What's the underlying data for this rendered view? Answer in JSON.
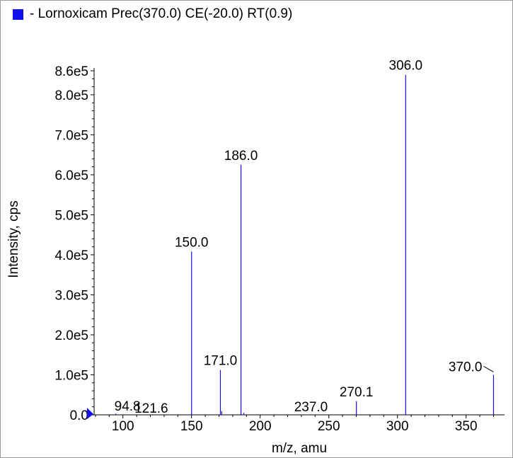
{
  "chart_data": {
    "type": "bar",
    "title": "- Lornoxicam Prec(370.0) CE(-20.0) RT(0.9)",
    "xlabel": "m/z, amu",
    "ylabel": "Intensity, cps",
    "xlim": [
      79,
      378
    ],
    "ylim": [
      0,
      860000
    ],
    "x_ticks": [
      100,
      150,
      200,
      250,
      300,
      350
    ],
    "y_ticks": [
      0,
      100000,
      200000,
      300000,
      400000,
      500000,
      600000,
      700000,
      800000,
      860000
    ],
    "y_tick_labels": [
      "0.0",
      "1.0e5",
      "2.0e5",
      "3.0e5",
      "4.0e5",
      "5.0e5",
      "6.0e5",
      "7.0e5",
      "8.0e5",
      "8.6e5"
    ],
    "series": [
      {
        "color": "#1010ee",
        "peaks": [
          {
            "x": 94.8,
            "y": 3000,
            "label": "94.8"
          },
          {
            "x": 121.6,
            "y": 1500,
            "label": "121.6"
          },
          {
            "x": 150.0,
            "y": 408000,
            "label": "150.0"
          },
          {
            "x": 171.0,
            "y": 112000,
            "label": "171.0"
          },
          {
            "x": 172.0,
            "y": 9000,
            "label": ""
          },
          {
            "x": 186.0,
            "y": 625000,
            "label": "186.0"
          },
          {
            "x": 188.0,
            "y": 5000,
            "label": ""
          },
          {
            "x": 237.0,
            "y": 1500,
            "label": "237.0"
          },
          {
            "x": 270.1,
            "y": 34000,
            "label": "270.1"
          },
          {
            "x": 306.0,
            "y": 850000,
            "label": "306.0"
          },
          {
            "x": 370.0,
            "y": 100000,
            "label": "370.0"
          }
        ]
      }
    ],
    "grid": false,
    "legend": "top-left"
  }
}
